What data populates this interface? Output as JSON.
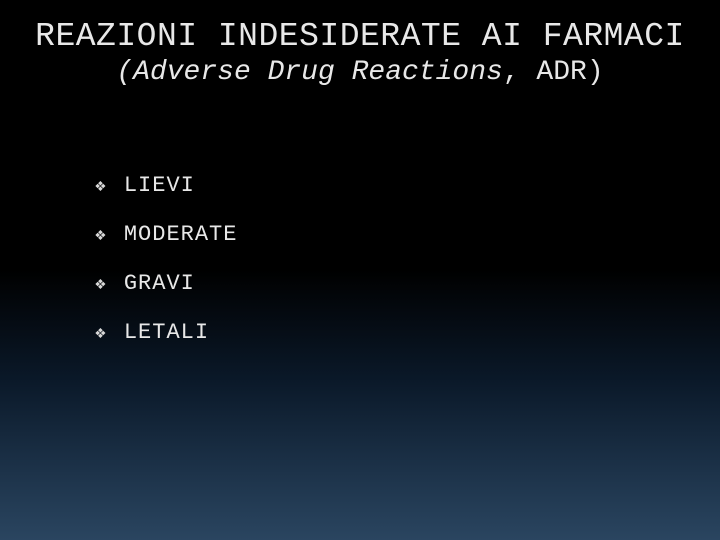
{
  "title": {
    "main": "REAZIONI INDESIDERATE AI FARMACI",
    "subtitle_italic": "(Adverse Drug Reactions",
    "subtitle_plain": ", ADR)"
  },
  "bullets": [
    {
      "label": "LIEVI"
    },
    {
      "label": "MODERATE"
    },
    {
      "label": "GRAVI"
    },
    {
      "label": "LETALI"
    }
  ],
  "style": {
    "background_gradient": [
      "#000000",
      "#000000",
      "#0a1828",
      "#1a2f45",
      "#2a4560"
    ],
    "text_color": "#e8e8e8",
    "bullet_color": "#d8d8d8",
    "font_family": "Courier New",
    "title_fontsize": 33,
    "subtitle_fontsize": 28,
    "bullet_fontsize": 22,
    "bullet_symbol": "❖"
  }
}
